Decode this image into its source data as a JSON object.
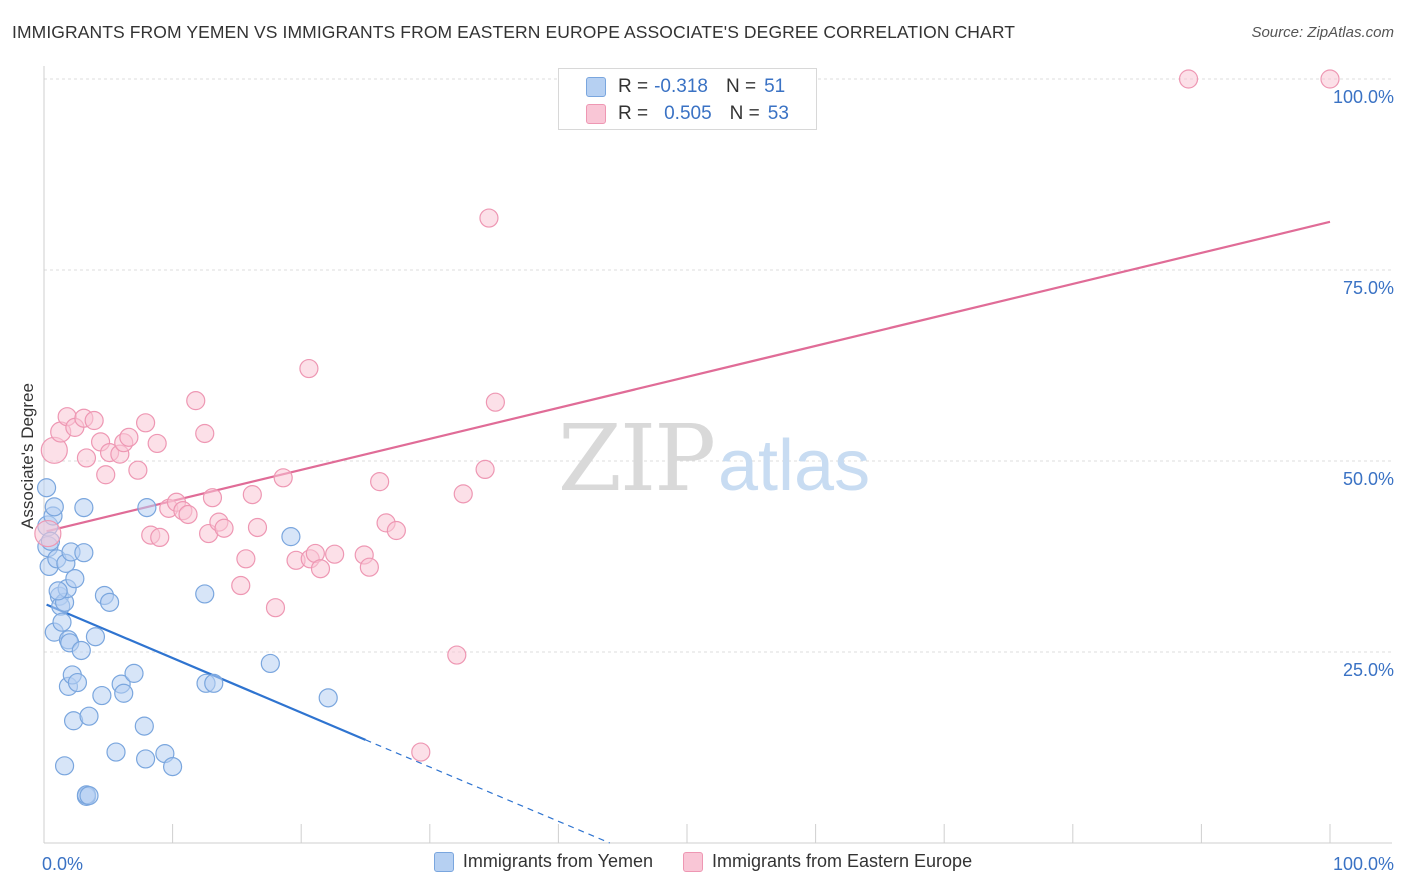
{
  "title": "IMMIGRANTS FROM YEMEN VS IMMIGRANTS FROM EASTERN EUROPE ASSOCIATE'S DEGREE CORRELATION CHART",
  "source": "Source: ZipAtlas.com",
  "watermark": {
    "zip": "ZIP",
    "atlas": "atlas"
  },
  "stats_box": {
    "rows": [
      {
        "r_label": "R =",
        "r_value": "-0.318",
        "n_label": "N =",
        "n_value": "51"
      },
      {
        "r_label": "R =",
        "r_value": "0.505",
        "n_label": "N =",
        "n_value": "53"
      }
    ]
  },
  "legend": {
    "yemen": "Immigrants from Yemen",
    "eastern_europe": "Immigrants from Eastern Europe"
  },
  "colors": {
    "yemen_fill": "#b6d0f2",
    "yemen_stroke": "#7aa6de",
    "yemen_line": "#2f74d0",
    "ee_fill": "#f9c6d6",
    "ee_stroke": "#ee97b3",
    "ee_line": "#e06c97",
    "tick_label": "#3a72c4",
    "grid": "#dcdcdc"
  },
  "chart_data": {
    "type": "scatter",
    "title": "IMMIGRANTS FROM YEMEN VS IMMIGRANTS FROM EASTERN EUROPE ASSOCIATE'S DEGREE CORRELATION CHART",
    "xlabel": "",
    "ylabel": "Associate's Degree",
    "xlim": [
      0,
      100
    ],
    "ylim": [
      0,
      100
    ],
    "x_tick_labels": [
      "0.0%",
      "100.0%"
    ],
    "y_ticks": [
      25,
      50,
      75,
      100
    ],
    "y_tick_labels": [
      "25.0%",
      "50.0%",
      "75.0%",
      "100.0%"
    ],
    "grid": true,
    "legend_position": "bottom",
    "series": [
      {
        "name": "Immigrants from Yemen",
        "r": -0.318,
        "n": 51,
        "trend": {
          "x0": 0.2,
          "y0": 31.2,
          "x1": 25,
          "y1": 13.5,
          "dash_to_x": 44,
          "dash_to_y": 0
        },
        "points": [
          [
            0.2,
            46.5,
            9
          ],
          [
            0.3,
            41.5,
            10
          ],
          [
            0.3,
            38.8,
            10
          ],
          [
            0.4,
            36.2,
            9
          ],
          [
            0.7,
            42.8,
            9
          ],
          [
            0.8,
            44.0,
            9
          ],
          [
            0.8,
            27.6,
            9
          ],
          [
            1.0,
            37.2,
            9
          ],
          [
            1.2,
            32.3,
            9
          ],
          [
            1.3,
            31.0,
            9
          ],
          [
            1.4,
            28.9,
            9
          ],
          [
            1.6,
            31.5,
            9
          ],
          [
            1.7,
            36.6,
            9
          ],
          [
            1.8,
            33.3,
            9
          ],
          [
            1.9,
            20.5,
            9
          ],
          [
            1.9,
            26.6,
            9
          ],
          [
            2.0,
            26.2,
            9
          ],
          [
            2.1,
            38.1,
            9
          ],
          [
            2.2,
            22.0,
            9
          ],
          [
            2.3,
            16.0,
            9
          ],
          [
            2.4,
            34.6,
            9
          ],
          [
            2.9,
            25.2,
            9
          ],
          [
            3.1,
            38.0,
            9
          ],
          [
            3.1,
            43.9,
            9
          ],
          [
            3.3,
            6.1,
            9
          ],
          [
            3.3,
            6.3,
            9
          ],
          [
            3.5,
            16.6,
            9
          ],
          [
            4.0,
            27.0,
            9
          ],
          [
            4.5,
            19.3,
            9
          ],
          [
            4.7,
            32.4,
            9
          ],
          [
            5.1,
            31.5,
            9
          ],
          [
            5.6,
            11.9,
            9
          ],
          [
            6.0,
            20.8,
            9
          ],
          [
            6.2,
            19.6,
            9
          ],
          [
            7.0,
            22.2,
            9
          ],
          [
            7.8,
            15.3,
            9
          ],
          [
            7.9,
            11.0,
            9
          ],
          [
            8.0,
            43.9,
            9
          ],
          [
            9.4,
            11.7,
            9
          ],
          [
            10.0,
            10.0,
            9
          ],
          [
            12.5,
            32.6,
            9
          ],
          [
            12.6,
            20.9,
            9
          ],
          [
            13.2,
            20.9,
            9
          ],
          [
            19.2,
            40.1,
            9
          ],
          [
            17.6,
            23.5,
            9
          ],
          [
            22.1,
            19.0,
            9
          ],
          [
            1.6,
            10.1,
            9
          ],
          [
            3.5,
            6.2,
            9
          ],
          [
            0.5,
            39.5,
            9
          ],
          [
            1.1,
            33.0,
            9
          ],
          [
            2.6,
            21.0,
            9
          ]
        ]
      },
      {
        "name": "Immigrants from Eastern Europe",
        "r": 0.505,
        "n": 53,
        "trend": {
          "x0": 0.2,
          "y0": 40.8,
          "x1": 100,
          "y1": 81.3
        },
        "points": [
          [
            0.3,
            40.5,
            13
          ],
          [
            0.8,
            51.4,
            13
          ],
          [
            1.3,
            53.8,
            10
          ],
          [
            1.8,
            55.8,
            9
          ],
          [
            2.4,
            54.4,
            9
          ],
          [
            3.1,
            55.6,
            9
          ],
          [
            3.3,
            50.4,
            9
          ],
          [
            3.9,
            55.3,
            9
          ],
          [
            4.4,
            52.5,
            9
          ],
          [
            4.8,
            48.2,
            9
          ],
          [
            5.1,
            51.1,
            9
          ],
          [
            5.9,
            50.9,
            9
          ],
          [
            6.2,
            52.4,
            9
          ],
          [
            6.6,
            53.1,
            9
          ],
          [
            7.3,
            48.8,
            9
          ],
          [
            7.9,
            55.0,
            9
          ],
          [
            8.3,
            40.3,
            9
          ],
          [
            8.8,
            52.3,
            9
          ],
          [
            9.0,
            40.0,
            9
          ],
          [
            9.7,
            43.8,
            9
          ],
          [
            10.3,
            44.6,
            9
          ],
          [
            10.8,
            43.5,
            9
          ],
          [
            11.2,
            43.0,
            9
          ],
          [
            11.8,
            57.9,
            9
          ],
          [
            12.5,
            53.6,
            9
          ],
          [
            12.8,
            40.5,
            9
          ],
          [
            13.1,
            45.2,
            9
          ],
          [
            13.6,
            42.0,
            9
          ],
          [
            14.0,
            41.2,
            9
          ],
          [
            15.3,
            33.7,
            9
          ],
          [
            15.7,
            37.2,
            9
          ],
          [
            16.2,
            45.6,
            9
          ],
          [
            16.6,
            41.3,
            9
          ],
          [
            18.0,
            30.8,
            9
          ],
          [
            18.6,
            47.8,
            9
          ],
          [
            19.6,
            37.0,
            9
          ],
          [
            20.6,
            62.1,
            9
          ],
          [
            20.7,
            37.2,
            9
          ],
          [
            21.1,
            37.9,
            9
          ],
          [
            21.5,
            35.9,
            9
          ],
          [
            22.6,
            37.8,
            9
          ],
          [
            24.9,
            37.7,
            9
          ],
          [
            25.3,
            36.1,
            9
          ],
          [
            26.1,
            47.3,
            9
          ],
          [
            26.6,
            41.9,
            9
          ],
          [
            27.4,
            40.9,
            9
          ],
          [
            29.3,
            11.9,
            9
          ],
          [
            32.1,
            24.6,
            9
          ],
          [
            32.6,
            45.7,
            9
          ],
          [
            34.3,
            48.9,
            9
          ],
          [
            34.6,
            81.8,
            9
          ],
          [
            35.1,
            57.7,
            9
          ],
          [
            89.0,
            100.0,
            9
          ]
        ]
      },
      {
        "name": "Immigrants from Eastern Europe",
        "extra_point": true,
        "points": [
          [
            100.0,
            100.0,
            9
          ]
        ]
      }
    ]
  }
}
